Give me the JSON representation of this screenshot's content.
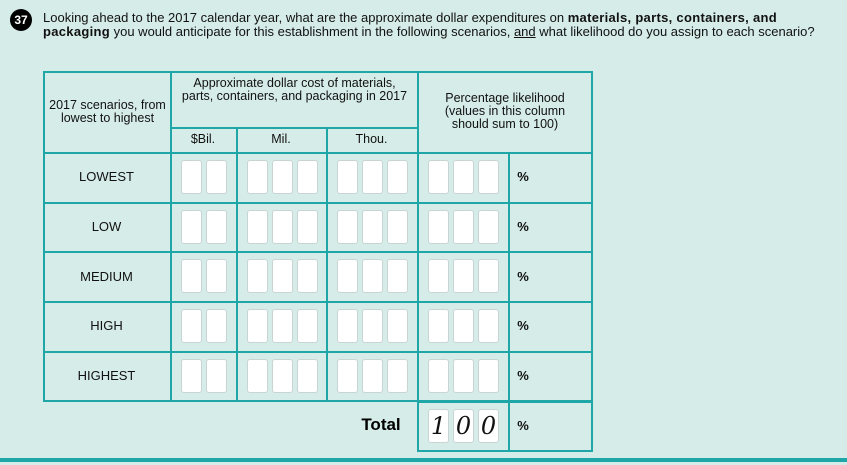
{
  "question": {
    "number": "37",
    "text": [
      "Looking ahead to the 2017 calendar year, what are the approximate dollar expenditures on ",
      "materials, parts, containers, and packaging",
      " you would anticipate for this establishment in the following scenarios, ",
      "and",
      " what likelihood do you assign to each scenario?"
    ]
  },
  "table": {
    "headers": [
      "2017 scenarios, from lowest to highest",
      "Approximate dollar cost of materials, parts, containers, and packaging in 2017",
      "Percentage likelihood (values in this column should sum to 100)"
    ],
    "subheaders": [
      "$Bil.",
      "Mil.",
      "Thou."
    ],
    "rows": [
      "LOWEST",
      "LOW",
      "MEDIUM",
      "HIGH",
      "HIGHEST"
    ],
    "percent_sign": "%",
    "total": {
      "label": "Total",
      "digits": [
        "1",
        "0",
        "0"
      ]
    }
  }
}
